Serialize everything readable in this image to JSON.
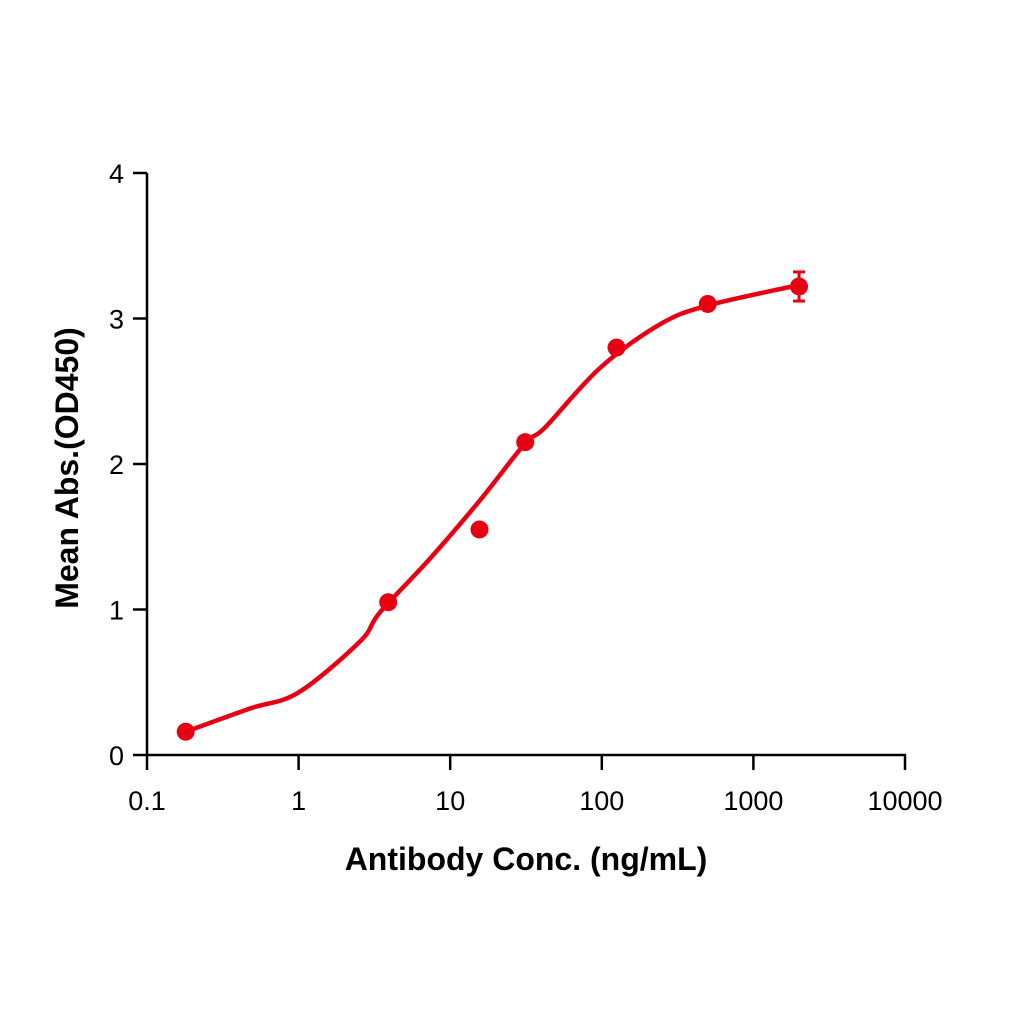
{
  "chart_data": {
    "type": "scatter",
    "title": "",
    "xlabel": "Antibody Conc. (ng/mL)",
    "ylabel": "Mean Abs.(OD450)",
    "xscale": "log",
    "xlim": [
      0.1,
      10000
    ],
    "ylim": [
      0,
      4
    ],
    "x_ticks": [
      0.1,
      1,
      10,
      100,
      1000,
      10000
    ],
    "x_tick_labels": [
      "0.1",
      "1",
      "10",
      "100",
      "1000",
      "10000"
    ],
    "y_ticks": [
      0,
      1,
      2,
      3,
      4
    ],
    "y_tick_labels": [
      "0",
      "1",
      "2",
      "3",
      "4"
    ],
    "grid": false,
    "legend": null,
    "color": "#E60012",
    "series": [
      {
        "name": "Mean Abs.",
        "x": [
          0.18,
          3.9,
          15.6,
          31.25,
          125,
          500,
          2000
        ],
        "y": [
          0.16,
          1.05,
          1.55,
          2.15,
          2.8,
          3.1,
          3.22
        ],
        "error": [
          0,
          0,
          0,
          0,
          0,
          0,
          0.1
        ]
      }
    ],
    "fit_curve": {
      "type": "4PL",
      "x": [
        0.18,
        0.48,
        1.0,
        2.54,
        3.44,
        7.36,
        15.7,
        31.1,
        42.2,
        97.3,
        242,
        501,
        2000
      ],
      "y": [
        0.16,
        0.32,
        0.43,
        0.78,
        0.98,
        1.35,
        1.75,
        2.14,
        2.25,
        2.66,
        2.96,
        3.09,
        3.23
      ]
    }
  }
}
